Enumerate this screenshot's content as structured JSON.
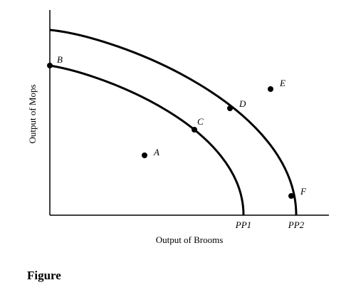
{
  "diagram": {
    "y_axis_label": "Output of Mops",
    "x_axis_label": "Output of Brooms",
    "curves": [
      {
        "label": "PP1"
      },
      {
        "label": "PP2"
      }
    ],
    "points": [
      {
        "label": "A"
      },
      {
        "label": "B"
      },
      {
        "label": "C"
      },
      {
        "label": "D"
      },
      {
        "label": "E"
      },
      {
        "label": "F"
      }
    ]
  },
  "caption": "Figure"
}
